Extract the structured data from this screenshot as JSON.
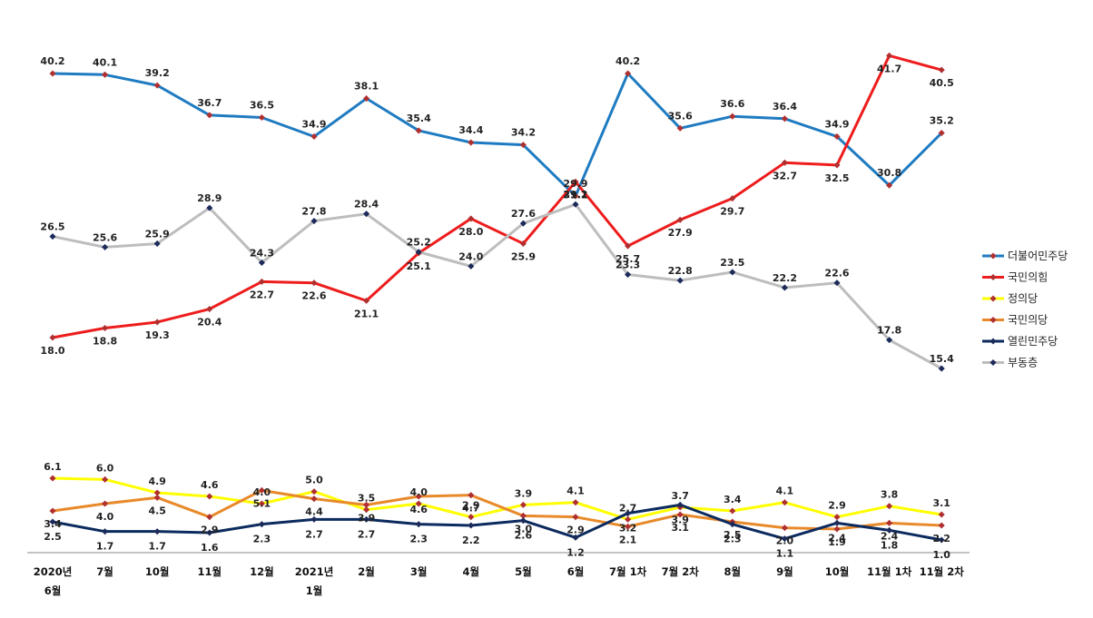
{
  "chart_data": {
    "type": "line",
    "categories": [
      [
        "2020년",
        "6월"
      ],
      [
        "7월"
      ],
      [
        "10월"
      ],
      [
        "11월"
      ],
      [
        "12월"
      ],
      [
        "2021년",
        "1월"
      ],
      [
        "2월"
      ],
      [
        "3월"
      ],
      [
        "4월"
      ],
      [
        "5월"
      ],
      [
        "6월"
      ],
      [
        "7월 1차"
      ],
      [
        "7월 2차"
      ],
      [
        "8월"
      ],
      [
        "9월"
      ],
      [
        "10월"
      ],
      [
        "11월 1차"
      ],
      [
        "11월 2차"
      ]
    ],
    "legend_position": "right",
    "grid": false,
    "panels": [
      {
        "id": "top",
        "ylim": [
          10,
          45
        ]
      },
      {
        "id": "bottom",
        "ylim": [
          0,
          7
        ]
      }
    ],
    "series": [
      {
        "name": "더불어민주당",
        "color": "#1f7bc1",
        "panel": "top",
        "values": [
          40.2,
          40.1,
          39.2,
          36.7,
          36.5,
          34.9,
          38.1,
          35.4,
          34.4,
          34.2,
          29.9,
          40.2,
          35.6,
          36.6,
          36.4,
          34.9,
          30.8,
          35.2
        ],
        "labels": [
          "40.2",
          "40.1",
          "39.2",
          "36.7",
          "36.5",
          "34.9",
          "38.1",
          "35.4",
          "34.4",
          "34.2",
          "29.9",
          "40.2",
          "35.6",
          "36.6",
          "36.4",
          "34.9",
          "30.8",
          "35.2"
        ]
      },
      {
        "name": "국민의힘",
        "color": "#ee1c1c",
        "panel": "top",
        "values": [
          18.0,
          18.8,
          19.3,
          20.4,
          22.7,
          22.6,
          21.1,
          25.1,
          28.0,
          25.9,
          31.1,
          25.7,
          27.9,
          29.7,
          32.7,
          32.5,
          41.7,
          40.5
        ],
        "labels": [
          "18.0",
          "18.8",
          "19.3",
          "20.4",
          "22.7",
          "22.6",
          "21.1",
          "25.1",
          "28.0",
          "25.9",
          "31.1",
          "25.7",
          "27.9",
          "29.7",
          "32.7",
          "32.5",
          "41.7",
          "40.5"
        ]
      },
      {
        "name": "정의당",
        "color": "#ffff00",
        "panel": "bottom",
        "values": [
          6.1,
          6.0,
          4.9,
          4.6,
          4.0,
          5.0,
          3.5,
          4.0,
          2.9,
          3.9,
          4.1,
          2.7,
          3.7,
          3.4,
          4.1,
          2.9,
          3.8,
          3.1
        ],
        "labels": [
          "6.1",
          "6.0",
          "4.9",
          "4.6",
          "4.0",
          "5.0",
          "3.5",
          "4.0",
          "2.9",
          "3.9",
          "4.1",
          "2.7",
          "3.7",
          "3.4",
          "4.1",
          "2.9",
          "3.8",
          "3.1"
        ]
      },
      {
        "name": "국민의당",
        "color": "#e8892a",
        "panel": "bottom",
        "values": [
          3.4,
          4.0,
          4.5,
          2.9,
          5.1,
          4.4,
          3.9,
          4.6,
          4.7,
          3.0,
          2.9,
          2.1,
          3.1,
          2.5,
          2.0,
          1.9,
          2.4,
          2.2
        ],
        "labels": [
          "3.4",
          "4.0",
          "4.5",
          "2.9",
          "5.1",
          "4.4",
          "3.9",
          "4.6",
          "4.7",
          "3.0",
          "2.9",
          "2.1",
          "3.1",
          "2.5",
          "2.0",
          "1.9",
          "2.4",
          "2.2"
        ]
      },
      {
        "name": "열린민주당",
        "color": "#0b2a5e",
        "panel": "bottom",
        "values": [
          2.5,
          1.7,
          1.7,
          1.6,
          2.3,
          2.7,
          2.7,
          2.3,
          2.2,
          2.6,
          1.2,
          3.2,
          3.9,
          2.3,
          1.1,
          2.4,
          1.8,
          1.0
        ],
        "labels": [
          "2.5",
          "1.7",
          "1.7",
          "1.6",
          "2.3",
          "2.7",
          "2.7",
          "2.3",
          "2.2",
          "2.6",
          "1.2",
          "3.2",
          "3.9",
          "2.3",
          "1.1",
          "2.4",
          "1.8",
          "1.0"
        ]
      },
      {
        "name": "부동층",
        "color": "#bdbdbd",
        "panel": "top",
        "values": [
          26.5,
          25.6,
          25.9,
          28.9,
          24.3,
          27.8,
          28.4,
          25.2,
          24.0,
          27.6,
          29.2,
          23.3,
          22.8,
          23.5,
          22.2,
          22.6,
          17.8,
          15.4
        ],
        "labels": [
          "26.5",
          "25.6",
          "25.9",
          "28.9",
          "24.3",
          "27.8",
          "28.4",
          "25.2",
          "24.0",
          "27.6",
          "29.2",
          "23.3",
          "22.8",
          "23.5",
          "22.2",
          "22.6",
          "17.8",
          "15.4"
        ]
      }
    ]
  }
}
